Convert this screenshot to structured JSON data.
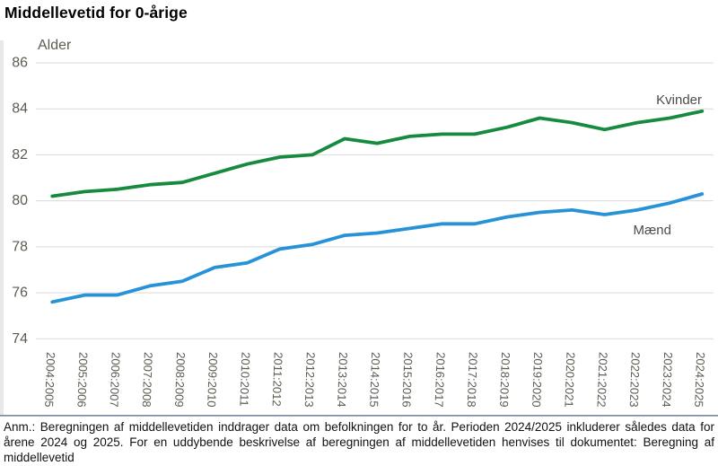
{
  "title": "Middellevetid for 0-årige",
  "y_axis_label": "Alder",
  "chart_data": {
    "type": "line",
    "categories": [
      "2004:2005",
      "2005:2006",
      "2006:2007",
      "2007:2008",
      "2008:2009",
      "2009:2010",
      "2010:2011",
      "2011:2012",
      "2012:2013",
      "2013:2014",
      "2014:2015",
      "2015:2016",
      "2016:2017",
      "2017:2018",
      "2018:2019",
      "2019:2020",
      "2020:2021",
      "2021:2022",
      "2022:2023",
      "2023:2024",
      "2024:2025"
    ],
    "series": [
      {
        "name": "Kvinder",
        "color": "#168b3f",
        "values": [
          80.2,
          80.4,
          80.5,
          80.7,
          80.8,
          81.2,
          81.6,
          81.9,
          82.0,
          82.7,
          82.5,
          82.8,
          82.9,
          82.9,
          83.2,
          83.6,
          83.4,
          83.1,
          83.4,
          83.6,
          83.9
        ]
      },
      {
        "name": "Mænd",
        "color": "#2792d8",
        "values": [
          75.6,
          75.9,
          75.9,
          76.3,
          76.5,
          77.1,
          77.3,
          77.9,
          78.1,
          78.5,
          78.6,
          78.8,
          79.0,
          79.0,
          79.3,
          79.5,
          79.6,
          79.4,
          79.6,
          79.9,
          80.3
        ]
      }
    ],
    "ylim": [
      74,
      86
    ],
    "y_ticks": [
      86,
      84,
      82,
      80,
      78,
      76,
      74
    ],
    "grid": "horizontal",
    "legend_position": "end-of-line-labels"
  },
  "colors": {
    "grid_line": "#d9d9d9",
    "tick_text": "#5d5b52",
    "kvinder_green": "#168b3f",
    "maend_blue": "#2792d8"
  },
  "footnote": "Anm.: Beregningen af middellevetiden inddrager data om befolkningen for to år. Perioden 2024/2025 inkluderer således data for årene 2024 og 2025. For en uddybende beskrivelse af beregningen af middellevetiden henvises til dokumentet: Beregning af middellevetid"
}
